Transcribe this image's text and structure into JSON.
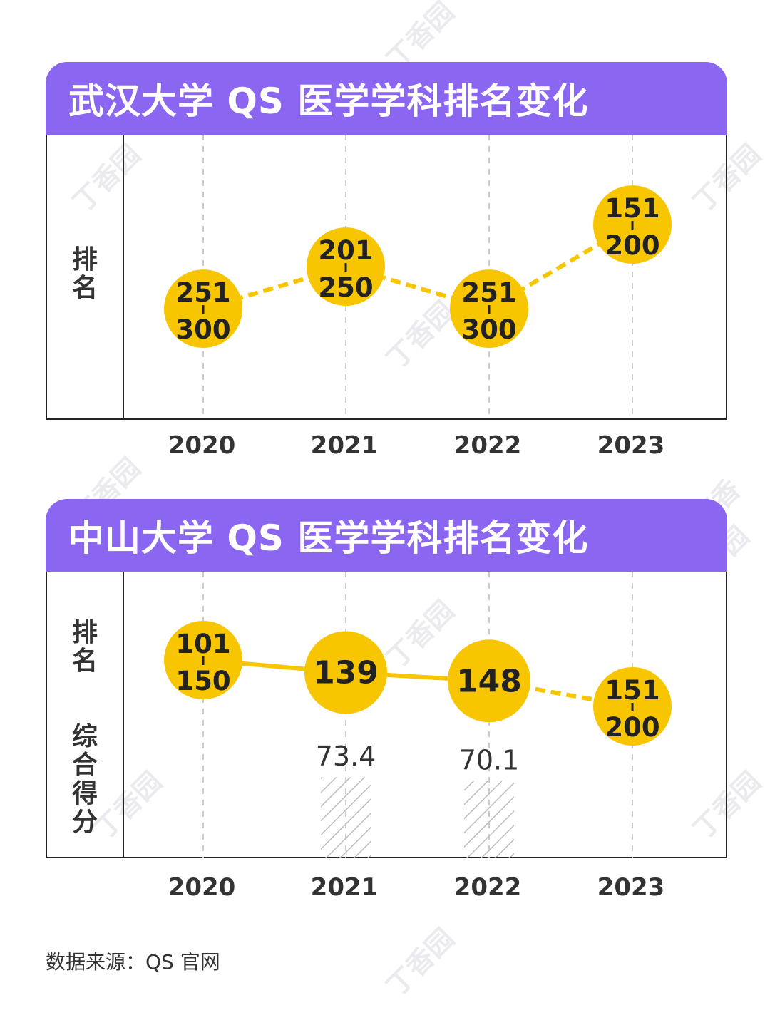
{
  "colors": {
    "header_bg": "#8b66f0",
    "bubble": "#f7c600",
    "line": "#f7c600",
    "grid": "#cccccc",
    "hatch": "#bdbdbd"
  },
  "watermark": "丁香园",
  "panels": [
    {
      "title": "武汉大学 QS 医学学科排名变化",
      "ylabels": [
        "排名"
      ]
    },
    {
      "title": "中山大学 QS 医学学科排名变化",
      "ylabels": [
        "排名",
        "综合得分"
      ]
    }
  ],
  "source": "数据来源：QS 官网",
  "chart_data": [
    {
      "type": "line",
      "title": "武汉大学 QS 医学学科排名变化",
      "ylabel": "排名",
      "x": [
        "2020",
        "2021",
        "2022",
        "2023"
      ],
      "series": [
        {
          "values": [
            {
              "year": "2020",
              "rank": "251-300",
              "range": [
                251,
                300
              ]
            },
            {
              "year": "2021",
              "rank": "201-250",
              "range": [
                201,
                250
              ]
            },
            {
              "year": "2022",
              "rank": "251-300",
              "range": [
                251,
                300
              ]
            },
            {
              "year": "2023",
              "rank": "151-200",
              "range": [
                151,
                200
              ]
            }
          ],
          "line_style": "dashed"
        }
      ]
    },
    {
      "type": "line",
      "title": "中山大学 QS 医学学科排名变化",
      "ylabel": "排名",
      "x": [
        "2020",
        "2021",
        "2022",
        "2023"
      ],
      "series": [
        {
          "values": [
            {
              "year": "2020",
              "rank": "101-150",
              "range": [
                101,
                150
              ]
            },
            {
              "year": "2021",
              "rank": "139",
              "range": [
                139,
                139
              ]
            },
            {
              "year": "2022",
              "rank": "148",
              "range": [
                148,
                148
              ]
            },
            {
              "year": "2023",
              "rank": "151-200",
              "range": [
                151,
                200
              ]
            }
          ],
          "line_style": [
            "solid",
            "solid",
            "dashed"
          ]
        }
      ],
      "bar_series": {
        "name": "综合得分",
        "style": "hatched",
        "values": [
          {
            "year": "2021",
            "value": 73.4
          },
          {
            "year": "2022",
            "value": 70.1
          }
        ]
      }
    }
  ]
}
